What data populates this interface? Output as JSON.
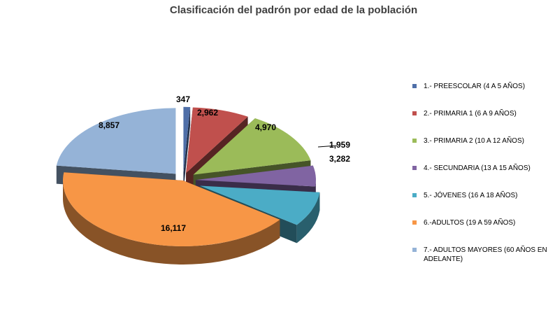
{
  "chart_data": {
    "type": "pie",
    "title": "Clasificación del padrón por edad de la población",
    "legend_position": "right",
    "exploded": true,
    "three_d": true,
    "series": [
      {
        "category": "1.- PREESCOLAR (4 A 5 AÑOS)",
        "value": 347,
        "label": "347",
        "color": "#4F6FA8"
      },
      {
        "category": "2.- PRIMARIA 1 (6 A 9 AÑOS)",
        "value": 2962,
        "label": "2,962",
        "color": "#C0504D"
      },
      {
        "category": "3.- PRIMARIA 2 (10 A 12 AÑOS)",
        "value": 4970,
        "label": "4,970",
        "color": "#9BBB59"
      },
      {
        "category": "4.- SECUNDARIA (13 A 15 AÑOS)",
        "value": 1959,
        "label": "1,959",
        "color": "#8064A2"
      },
      {
        "category": "5.- JÓVENES  (16 A 18 AÑOS)",
        "value": 3282,
        "label": "3,282",
        "color": "#4BACC6"
      },
      {
        "category": "6.-ADULTOS (19 A 59 AÑOS)",
        "value": 16117,
        "label": "16,117",
        "color": "#F79646"
      },
      {
        "category": "7.- ADULTOS MAYORES (60 AÑOS EN ADELANTE)",
        "value": 8857,
        "label": "8,857",
        "color": "#95B3D7"
      }
    ]
  }
}
